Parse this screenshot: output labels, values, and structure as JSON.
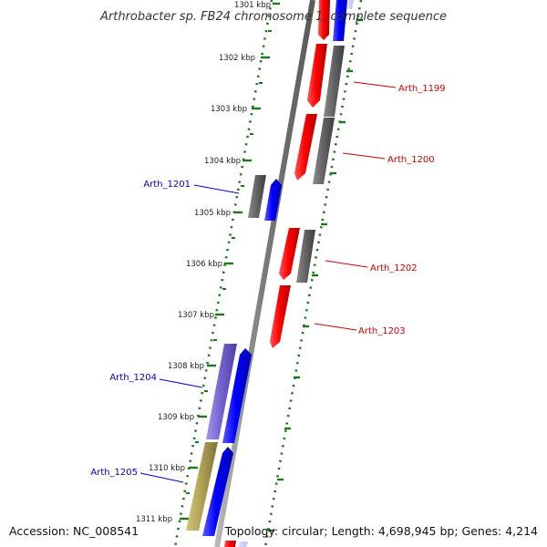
{
  "header": {
    "title": "Arthrobacter sp. FB24 chromosome 1, complete sequence"
  },
  "footer": {
    "accession": "Accession: NC_008541",
    "summary": "Topology: circular; Length: 4,698,945 bp; Genes: 4,214"
  },
  "scale": {
    "unit_labels": [
      "1301 kbp",
      "1302 kbp",
      "1303 kbp",
      "1304 kbp",
      "1305 kbp",
      "1306 kbp",
      "1307 kbp",
      "1308 kbp",
      "1309 kbp",
      "1310 kbp",
      "1311 kbp"
    ]
  },
  "colors": {
    "forward_gene": "#0000ee",
    "reverse_gene": "#ee0000",
    "neutral_gene": "#606060",
    "purple_gene": "#7060cc",
    "olive_gene": "#b0a050",
    "backbone": "#808080",
    "tick_green": "#1a7a1a",
    "label_forward": "#0000cc",
    "label_reverse": "#cc0000"
  },
  "genes": [
    {
      "label": "Arth_1199",
      "strand": "reverse"
    },
    {
      "label": "Arth_1200",
      "strand": "reverse"
    },
    {
      "label": "Arth_1201",
      "strand": "forward"
    },
    {
      "label": "Arth_1202",
      "strand": "reverse"
    },
    {
      "label": "Arth_1203",
      "strand": "reverse"
    },
    {
      "label": "Arth_1204",
      "strand": "forward"
    },
    {
      "label": "Arth_1205",
      "strand": "forward"
    }
  ]
}
